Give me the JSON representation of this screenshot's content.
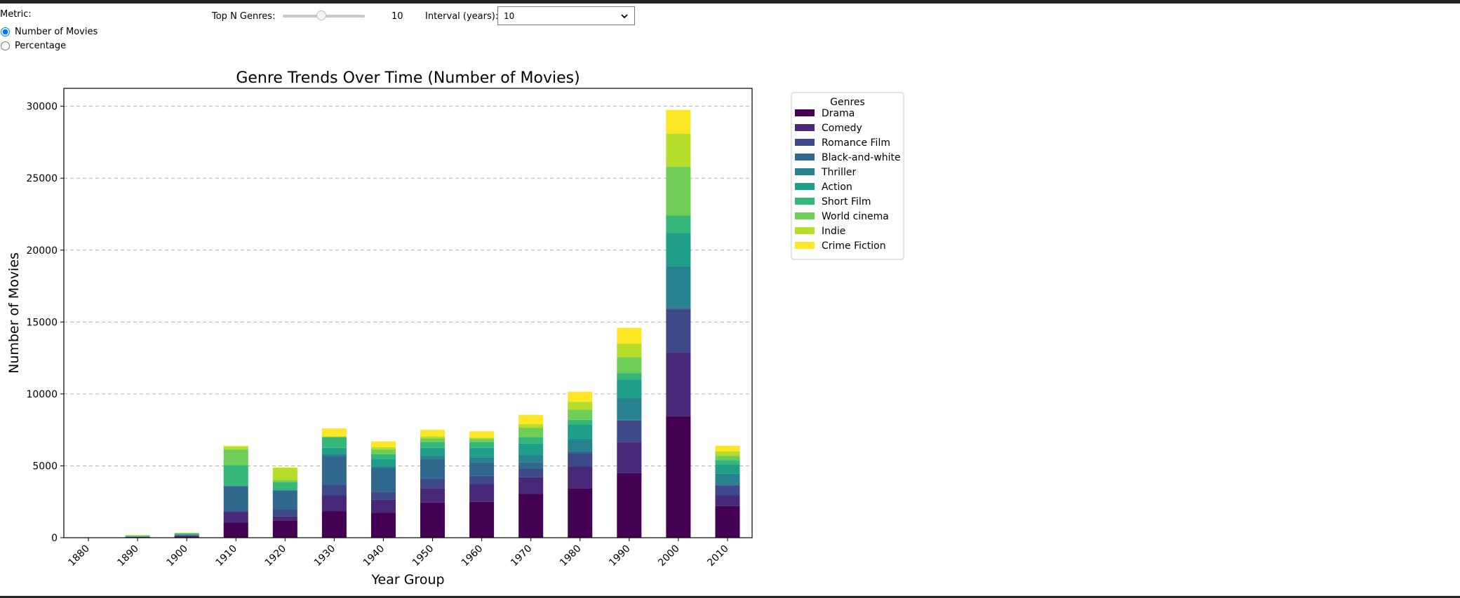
{
  "controls": {
    "metric_label": "Metric:",
    "metric_options": [
      "Number of Movies",
      "Percentage"
    ],
    "metric_selected": "Number of Movies",
    "topn_label": "Top N Genres:",
    "topn_value": "10",
    "topn_min": 1,
    "topn_max": 20,
    "interval_label": "Interval (years):",
    "interval_value": "10",
    "icons": [
      "chevron-down-icon"
    ]
  },
  "chart_data": {
    "type": "bar",
    "stacked": true,
    "title": "Genre Trends Over Time (Number of Movies)",
    "xlabel": "Year Group",
    "ylabel": "Number of Movies",
    "ylim": [
      0,
      31250
    ],
    "yticks": [
      0,
      5000,
      10000,
      15000,
      20000,
      25000,
      30000
    ],
    "grid": "y-dashed",
    "legend_title": "Genres",
    "legend_position": "outside-right-top",
    "categories": [
      "1880",
      "1890",
      "1900",
      "1910",
      "1920",
      "1930",
      "1940",
      "1950",
      "1960",
      "1970",
      "1980",
      "1990",
      "2000",
      "2010"
    ],
    "series": [
      {
        "name": "Drama",
        "color": "#440154",
        "values": [
          0,
          20,
          80,
          1050,
          1200,
          1850,
          1750,
          2450,
          2500,
          3050,
          3450,
          4500,
          8450,
          2200
        ]
      },
      {
        "name": "Comedy",
        "color": "#482878",
        "values": [
          0,
          30,
          60,
          750,
          300,
          1100,
          900,
          1000,
          1250,
          1150,
          1500,
          2150,
          4450,
          750
        ]
      },
      {
        "name": "Romance Film",
        "color": "#3e4989",
        "values": [
          0,
          5,
          10,
          50,
          450,
          750,
          550,
          650,
          550,
          600,
          900,
          1500,
          3000,
          700
        ]
      },
      {
        "name": "Black-and-white",
        "color": "#31688e",
        "values": [
          0,
          20,
          40,
          1750,
          1350,
          2000,
          1650,
          1400,
          950,
          450,
          150,
          50,
          100,
          50
        ]
      },
      {
        "name": "Thriller",
        "color": "#26828e",
        "values": [
          0,
          5,
          10,
          0,
          0,
          100,
          100,
          200,
          350,
          500,
          850,
          1500,
          2900,
          750
        ]
      },
      {
        "name": "Action",
        "color": "#1f9e89",
        "values": [
          0,
          10,
          20,
          0,
          50,
          450,
          550,
          550,
          650,
          800,
          1000,
          1300,
          2300,
          650
        ]
      },
      {
        "name": "Short Film",
        "color": "#35b779",
        "values": [
          0,
          40,
          80,
          1450,
          500,
          750,
          300,
          400,
          400,
          450,
          350,
          450,
          1200,
          300
        ]
      },
      {
        "name": "World cinema",
        "color": "#6ece58",
        "values": [
          0,
          10,
          10,
          1100,
          150,
          0,
          350,
          250,
          200,
          650,
          700,
          1100,
          3400,
          300
        ]
      },
      {
        "name": "Indie",
        "color": "#b5de2b",
        "values": [
          0,
          40,
          40,
          200,
          850,
          50,
          150,
          150,
          100,
          250,
          550,
          950,
          2300,
          300
        ]
      },
      {
        "name": "Crime Fiction",
        "color": "#fde725",
        "values": [
          0,
          10,
          10,
          50,
          50,
          550,
          400,
          450,
          450,
          650,
          700,
          1100,
          1650,
          400
        ]
      }
    ]
  }
}
